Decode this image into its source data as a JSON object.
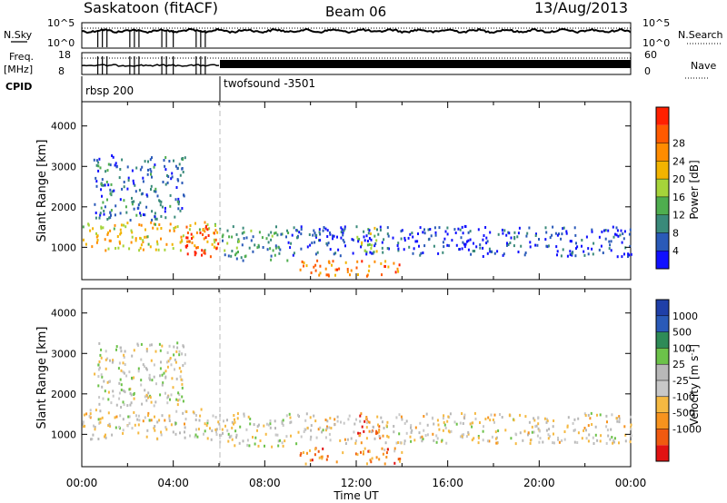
{
  "header": {
    "title": "Saskatoon (fitACF)",
    "beam": "Beam 06",
    "date": "13/Aug/2013"
  },
  "status_panel": {
    "nsky_label": "N.Sky",
    "nsky_ticks": [
      "10^5",
      "10^0"
    ],
    "nsearch_label": "N.Search",
    "nsearch_ticks": [
      "10^5",
      "10^0"
    ],
    "freq_label_1": "Freq.",
    "freq_label_2": "[MHz]",
    "freq_ticks": [
      "18",
      "8"
    ],
    "nave_label": "Nave",
    "nave_ticks": [
      "60",
      "0"
    ],
    "cpid_label": "CPID",
    "cpid_modes": [
      {
        "name": "rbsp 200",
        "start_hour": 0,
        "end_hour": 6
      },
      {
        "name": "twofsound -3501",
        "start_hour": 6,
        "end_hour": 24
      }
    ]
  },
  "colors": {
    "power": [
      "#1010ff",
      "#2a5ab8",
      "#3a8a7a",
      "#4fae4f",
      "#a6d43a",
      "#f2b400",
      "#ff8c00",
      "#ff5a00",
      "#ff2000"
    ],
    "velocity": [
      "#e11212",
      "#f05a10",
      "#f7931e",
      "#f5b942",
      "#c8c8c8",
      "#b8b8b8",
      "#6cc24a",
      "#2e8b57",
      "#2a5ab8",
      "#1f3fa8"
    ]
  },
  "chart_data": [
    {
      "type": "heatmap",
      "name": "Power",
      "ylabel": "Slant Range [km]",
      "xlabel": "",
      "ylim": [
        200,
        4600
      ],
      "yticks": [
        "1000",
        "2000",
        "3000",
        "4000"
      ],
      "xticks": [
        "00:00",
        "04:00",
        "08:00",
        "12:00",
        "16:00",
        "20:00",
        "00:00"
      ],
      "colorbar_label": "Power [dB]",
      "colorbar_ticks": [
        "4",
        "8",
        "12",
        "16",
        "20",
        "24",
        "28"
      ],
      "scatter_regions": [
        {
          "t0": 0.0,
          "t1": 6.0,
          "r0": 950,
          "r1": 1650,
          "level": 0.6
        },
        {
          "t0": 4.5,
          "t1": 6.0,
          "r0": 800,
          "r1": 1600,
          "level": 0.95
        },
        {
          "t0": 0.5,
          "t1": 4.5,
          "r0": 1700,
          "r1": 3300,
          "level": 0.2
        },
        {
          "t0": 6.0,
          "t1": 9.0,
          "r0": 700,
          "r1": 1550,
          "level": 0.3
        },
        {
          "t0": 9.5,
          "t1": 14.0,
          "r0": 300,
          "r1": 700,
          "level": 0.75
        },
        {
          "t0": 12.0,
          "t1": 13.0,
          "r0": 900,
          "r1": 1550,
          "level": 0.45
        },
        {
          "t0": 9.0,
          "t1": 24.0,
          "r0": 800,
          "r1": 1550,
          "level": 0.1
        }
      ]
    },
    {
      "type": "heatmap",
      "name": "Velocity",
      "ylabel": "Slant Range [km]",
      "xlabel": "Time UT",
      "ylim": [
        200,
        4600
      ],
      "yticks": [
        "1000",
        "2000",
        "3000",
        "4000"
      ],
      "xticks": [
        "00:00",
        "04:00",
        "08:00",
        "12:00",
        "16:00",
        "20:00",
        "00:00"
      ],
      "colorbar_label": "Velocity [m s^-1]",
      "colorbar_ticks": [
        "1000",
        "500",
        "100",
        "25",
        "-25",
        "-100",
        "-500",
        "-1000"
      ],
      "scatter_regions": [
        {
          "t0": 0.0,
          "t1": 6.0,
          "r0": 900,
          "r1": 1650,
          "level": 0.45
        },
        {
          "t0": 0.5,
          "t1": 4.5,
          "r0": 1700,
          "r1": 3300,
          "level": 0.5
        },
        {
          "t0": 6.0,
          "t1": 9.0,
          "r0": 700,
          "r1": 1550,
          "level": 0.5
        },
        {
          "t0": 9.5,
          "t1": 14.0,
          "r0": 300,
          "r1": 700,
          "level": 0.25
        },
        {
          "t0": 12.0,
          "t1": 13.0,
          "r0": 900,
          "r1": 1550,
          "level": 0.2
        },
        {
          "t0": 9.0,
          "t1": 24.0,
          "r0": 800,
          "r1": 1550,
          "level": 0.45
        }
      ]
    }
  ]
}
